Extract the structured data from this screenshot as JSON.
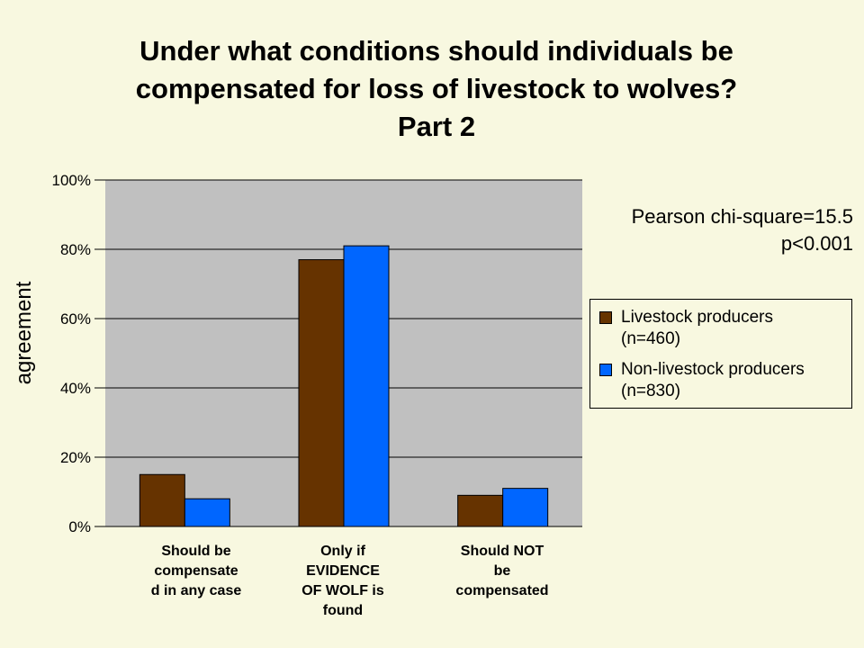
{
  "title_lines": [
    "Under what conditions should individuals be",
    "compensated for loss of livestock to wolves?",
    "Part 2"
  ],
  "stat_lines": [
    "Pearson chi-square=15.5",
    "p<0.001"
  ],
  "colors": {
    "background": "#f8f8e0",
    "plot_area": "#c0c0c0",
    "livestock": "#663300",
    "non_livestock": "#0066ff"
  },
  "chart_data": {
    "type": "bar",
    "title": "Under what conditions should individuals be compensated for loss of livestock to wolves? Part 2",
    "ylabel": "agreement",
    "xlabel": "",
    "ylim": [
      0,
      100
    ],
    "yticks": [
      "0%",
      "20%",
      "40%",
      "60%",
      "80%",
      "100%"
    ],
    "grid": true,
    "legend_position": "right",
    "categories": [
      "Should be\ncompensate\nd in any case",
      "Only if\nEVIDENCE\nOF WOLF is\nfound",
      "Should NOT\nbe\ncompensated"
    ],
    "series": [
      {
        "name": "Livestock producers\n(n=460)",
        "values": [
          15,
          77,
          9
        ]
      },
      {
        "name": "Non-livestock producers\n(n=830)",
        "values": [
          8,
          81,
          11
        ]
      }
    ]
  }
}
